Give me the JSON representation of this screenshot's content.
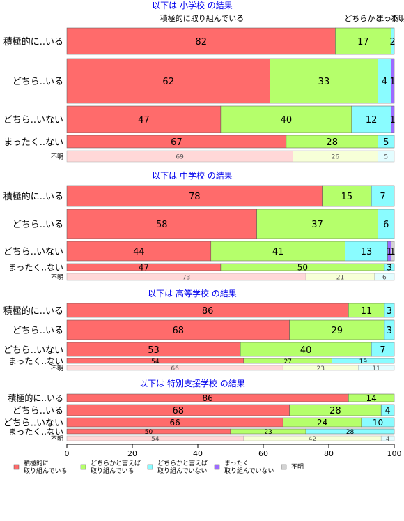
{
  "chart_data": {
    "type": "bar",
    "orientation": "horizontal",
    "stacked": "percent",
    "xlim": [
      0,
      100
    ],
    "x_ticks": [
      0,
      20,
      40,
      60,
      80,
      100
    ],
    "colors": [
      "#ff6b6b",
      "#b5ff6b",
      "#8afcff",
      "#9d6bff",
      "#d3d3d3"
    ],
    "legend": {
      "placement": "bottom",
      "entries": [
        [
          "積極的に",
          "取り組んでいる"
        ],
        [
          "どちらかと言えば",
          "取り組んでいる"
        ],
        [
          "どちらかと言えば",
          "取り組んでいない"
        ],
        [
          "まったく",
          "取り組んでいない"
        ],
        [
          "不明"
        ]
      ]
    },
    "top_labels": [
      "積極的に取り組んでいる",
      "どちらかと...",
      "まった...",
      "不明"
    ],
    "panels": [
      {
        "title": "--- 以下は 小学校 の結果 ---",
        "rows": [
          {
            "label": "積極的に..いる",
            "values": [
              82,
              17,
              2,
              0,
              0
            ]
          },
          {
            "label": "どちら..いる",
            "values": [
              62,
              33,
              4,
              1,
              0
            ]
          },
          {
            "label": "どちら..いない",
            "values": [
              47,
              40,
              12,
              1,
              0
            ]
          },
          {
            "label": "まったく..ない",
            "values": [
              67,
              28,
              5,
              0,
              0
            ]
          },
          {
            "label": "不明",
            "values": [
              69,
              26,
              5,
              0,
              0
            ],
            "faded": true
          }
        ]
      },
      {
        "title": "--- 以下は 中学校 の結果 ---",
        "rows": [
          {
            "label": "積極的に..いる",
            "values": [
              78,
              15,
              7,
              0,
              0
            ]
          },
          {
            "label": "どちら..いる",
            "values": [
              58,
              37,
              6,
              0,
              0
            ]
          },
          {
            "label": "どちら..いない",
            "values": [
              44,
              41,
              13,
              1,
              1
            ]
          },
          {
            "label": "まったく..ない",
            "values": [
              47,
              50,
              3,
              0,
              0
            ]
          },
          {
            "label": "不明",
            "values": [
              73,
              21,
              6,
              0,
              0
            ],
            "faded": true
          }
        ]
      },
      {
        "title": "--- 以下は 高等学校 の結果 ---",
        "rows": [
          {
            "label": "積極的に..いる",
            "values": [
              86,
              11,
              3,
              0,
              0
            ]
          },
          {
            "label": "どちら..いる",
            "values": [
              68,
              29,
              3,
              0,
              0
            ]
          },
          {
            "label": "どちら..いない",
            "values": [
              53,
              40,
              7,
              0,
              0
            ]
          },
          {
            "label": "まったく..ない",
            "values": [
              54,
              27,
              19,
              0,
              0
            ]
          },
          {
            "label": "不明",
            "values": [
              66,
              23,
              11,
              0,
              0
            ],
            "faded": true
          }
        ]
      },
      {
        "title": "--- 以下は 特別支援学校 の結果 ---",
        "rows": [
          {
            "label": "積極的に..いる",
            "values": [
              86,
              14,
              0,
              0,
              0
            ]
          },
          {
            "label": "どちら..いる",
            "values": [
              68,
              28,
              4,
              0,
              0
            ]
          },
          {
            "label": "どちら..いない",
            "values": [
              66,
              24,
              10,
              0,
              0
            ]
          },
          {
            "label": "まったく..ない",
            "values": [
              50,
              23,
              28,
              0,
              0
            ]
          },
          {
            "label": "不明",
            "values": [
              54,
              42,
              4,
              0,
              0
            ],
            "faded": true
          }
        ]
      }
    ]
  }
}
